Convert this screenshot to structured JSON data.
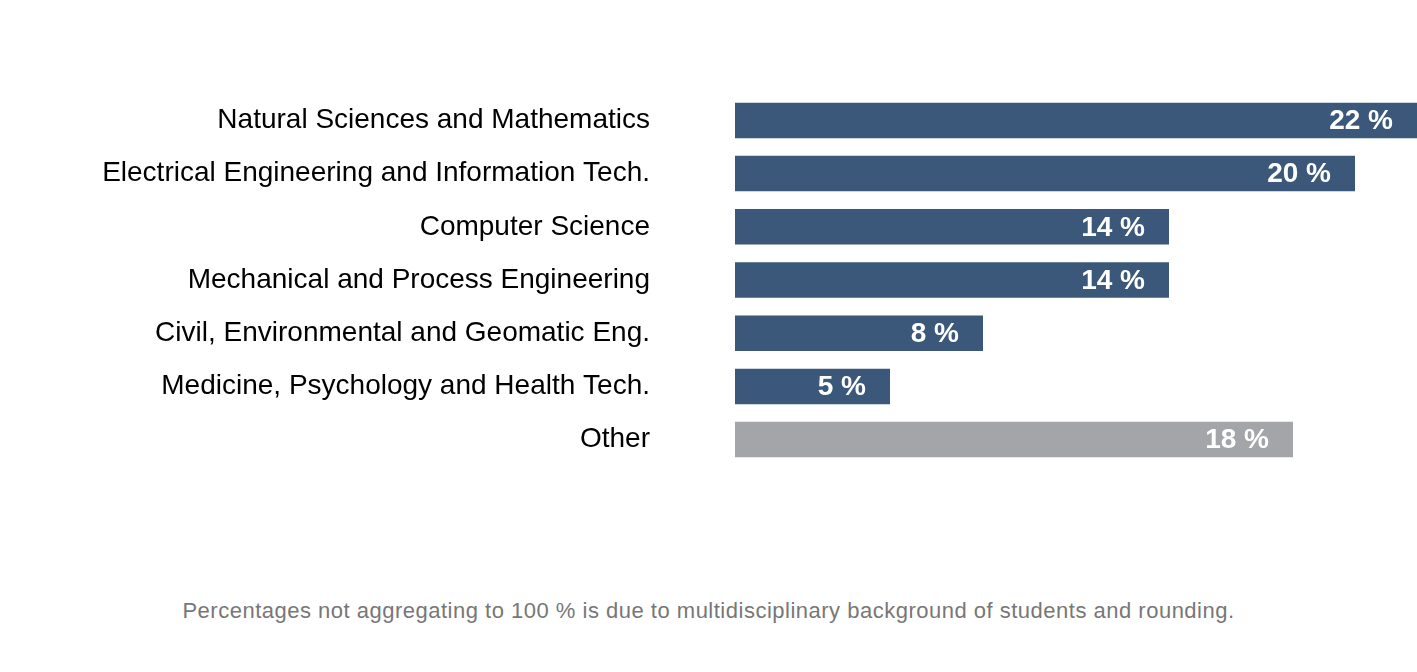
{
  "chart_data": {
    "type": "bar",
    "orientation": "horizontal",
    "categories": [
      "Natural Sciences and Mathematics",
      "Electrical Engineering and Information Tech.",
      "Computer Science",
      "Mechanical and Process Engineering",
      "Civil, Environmental and Geomatic Eng.",
      "Medicine, Psychology and Health Tech.",
      "Other"
    ],
    "values": [
      22,
      20,
      14,
      14,
      8,
      5,
      18
    ],
    "value_labels": [
      "22 %",
      "20 %",
      "14 %",
      "14 %",
      "8 %",
      "5 %",
      "18 %"
    ],
    "colors": [
      "#3b5779",
      "#3b5779",
      "#3b5779",
      "#3b5779",
      "#3b5779",
      "#3b5779",
      "#a3a5a8"
    ],
    "xlim": [
      0,
      22
    ],
    "grid": false,
    "legend": "none",
    "data_labels": true,
    "tick_labels": "y",
    "annotations": [
      "Percentages not aggregating to 100 % is due to multidisciplinary background of students and rounding."
    ]
  }
}
